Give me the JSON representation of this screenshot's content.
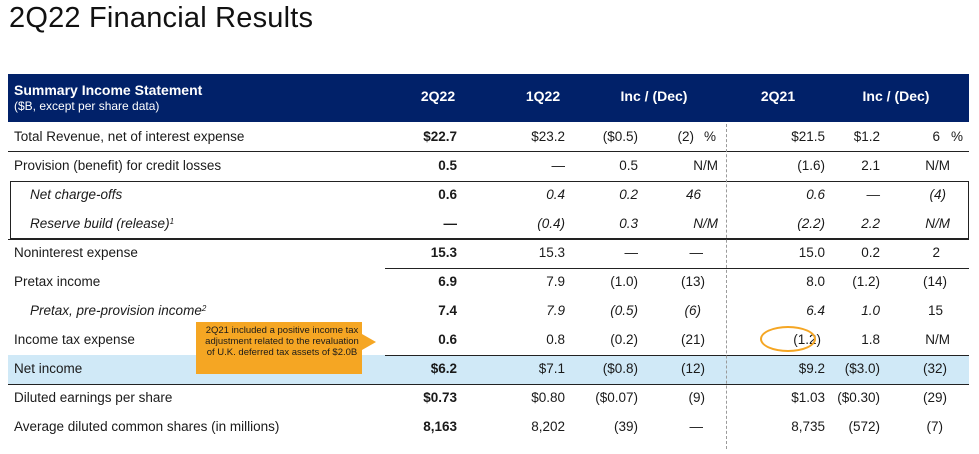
{
  "page": {
    "title": "2Q22 Financial Results"
  },
  "header": {
    "label": "Summary Income Statement",
    "sublabel": "($B, except per share data)",
    "col_2q22": "2Q22",
    "col_1q22": "1Q22",
    "col_inc1": "Inc / (Dec)",
    "col_2q21": "2Q21",
    "col_inc2": "Inc / (Dec)"
  },
  "rows": [
    {
      "label": "Total Revenue, net of interest expense",
      "v2q22": "$22.7",
      "v1q22": "$23.2",
      "d1": "($0.5)",
      "p1": "(2)",
      "pct1": "%",
      "v2q21": "$21.5",
      "d2": "$1.2",
      "p2": "6",
      "pct2": "%"
    },
    {
      "label": "Provision (benefit) for credit losses",
      "v2q22": "0.5",
      "v1q22": "—",
      "d1": "0.5",
      "p1": "N/M",
      "v2q21": "(1.6)",
      "d2": "2.1",
      "p2": "N/M"
    },
    {
      "label": "Net charge-offs",
      "v2q22": "0.6",
      "v1q22": "0.4",
      "d1": "0.2",
      "p1": "46",
      "v2q21": "0.6",
      "d2": "—",
      "p2": "(4)"
    },
    {
      "label": "Reserve build (release)",
      "sup": "1",
      "v2q22": "—",
      "v1q22": "(0.4)",
      "d1": "0.3",
      "p1": "N/M",
      "v2q21": "(2.2)",
      "d2": "2.2",
      "p2": "N/M"
    },
    {
      "label": "Noninterest expense",
      "v2q22": "15.3",
      "v1q22": "15.3",
      "d1": "—",
      "p1": "—",
      "v2q21": "15.0",
      "d2": "0.2",
      "p2": "2"
    },
    {
      "label": "Pretax income",
      "v2q22": "6.9",
      "v1q22": "7.9",
      "d1": "(1.0)",
      "p1": "(13)",
      "v2q21": "8.0",
      "d2": "(1.2)",
      "p2": "(14)"
    },
    {
      "label": "Pretax, pre-provision income",
      "sup": "2",
      "v2q22": "7.4",
      "v1q22": "7.9",
      "d1": "(0.5)",
      "p1": "(6)",
      "v2q21": "6.4",
      "d2": "1.0",
      "p2": "15"
    },
    {
      "label": "Income tax expense",
      "v2q22": "0.6",
      "v1q22": "0.8",
      "d1": "(0.2)",
      "p1": "(21)",
      "v2q21": "(1.2)",
      "d2": "1.8",
      "p2": "N/M"
    },
    {
      "label": "Net income",
      "v2q22": "$6.2",
      "v1q22": "$7.1",
      "d1": "($0.8)",
      "p1": "(12)",
      "v2q21": "$9.2",
      "d2": "($3.0)",
      "p2": "(32)"
    },
    {
      "label": "Diluted earnings per share",
      "v2q22": "$0.73",
      "v1q22": "$0.80",
      "d1": "($0.07)",
      "p1": "(9)",
      "v2q21": "$1.03",
      "d2": "($0.30)",
      "p2": "(29)"
    },
    {
      "label": "Average diluted common shares (in millions)",
      "v2q22": "8,163",
      "v1q22": "8,202",
      "d1": "(39)",
      "p1": "—",
      "v2q21": "8,735",
      "d2": "(572)",
      "p2": "(7)"
    }
  ],
  "callout": {
    "text": "2Q21 included a positive income tax adjustment related to the revaluation of U.K. deferred tax assets of $2.0B"
  },
  "colors": {
    "header_bg": "#012169",
    "net_income_bg": "#d0e9f7",
    "callout_bg": "#f5a623",
    "highlight": "#f5a623"
  }
}
